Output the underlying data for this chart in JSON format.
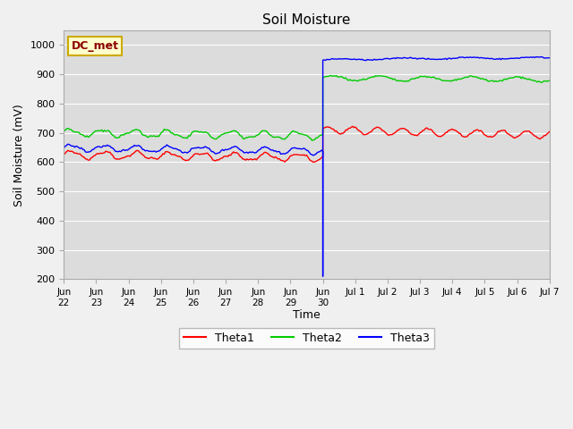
{
  "title": "Soil Moisture",
  "ylabel": "Soil Moisture (mV)",
  "xlabel": "Time",
  "ylim": [
    200,
    1050
  ],
  "yticks": [
    200,
    300,
    400,
    500,
    600,
    700,
    800,
    900,
    1000
  ],
  "bg_color": "#dcdcdc",
  "fig_color": "#f0f0f0",
  "annotation_text": "DC_met",
  "annotation_bg": "#ffffcc",
  "annotation_border": "#ccaa00",
  "annotation_text_color": "#8b0000",
  "line_colors": {
    "Theta1": "#ff0000",
    "Theta2": "#00cc00",
    "Theta3": "#0000ff"
  },
  "legend_labels": [
    "Theta1",
    "Theta2",
    "Theta3"
  ],
  "grid_color": "#ffffff",
  "tick_labels_pre": [
    "Jun 22",
    "Jun 23",
    "Jun 24",
    "Jun 25",
    "Jun 26",
    "Jun 27",
    "Jun 28",
    "Jun 29",
    "Jun 30"
  ],
  "tick_labels_post": [
    "Jul 1",
    "Jul 2",
    "Jul 3",
    "Jul 4",
    "Jul 5",
    "Jul 6",
    "Jul 7"
  ]
}
